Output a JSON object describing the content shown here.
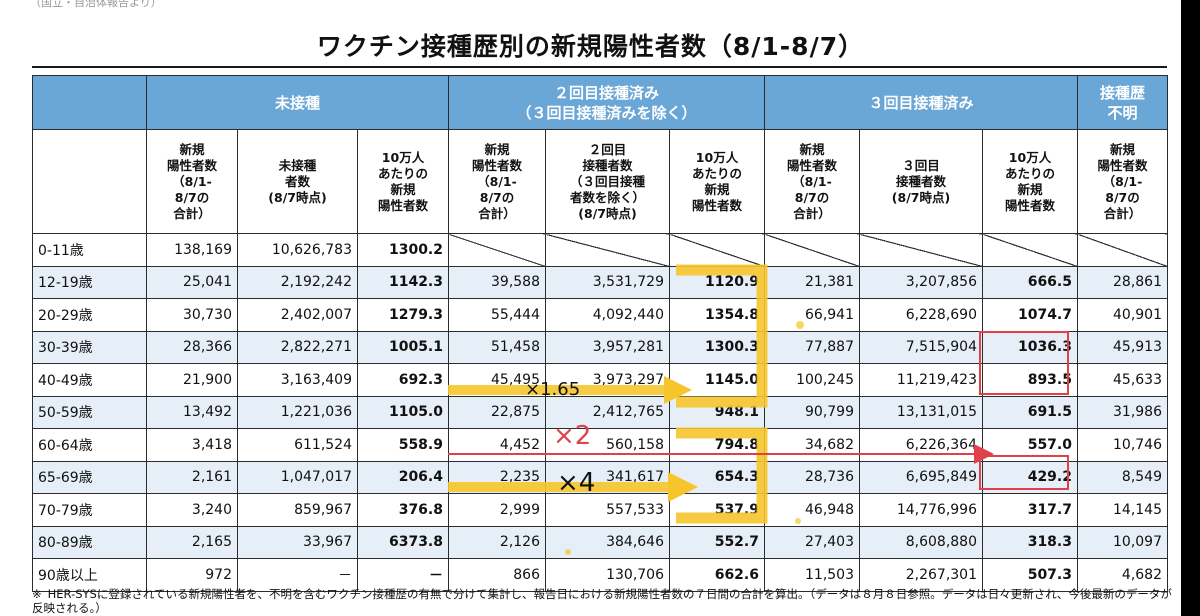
{
  "top_strip": "（国立・自治体報告より）",
  "title": "ワクチン接種歴別の新規陽性者数（8/1-8/7）",
  "groups": {
    "age": "",
    "unvaccinated": "未接種",
    "two_dose": "２回目接種済み\n（３回目接種済みを除く）",
    "three_dose": "３回目接種済み",
    "unknown": "接種歴\n不明"
  },
  "subheaders": {
    "c1": "新規\n陽性者数\n（8/1-\n8/7の\n合計）",
    "c2": "未接種\n者数\n(8/7時点)",
    "c3": "10万人\nあたりの\n新規\n陽性者数",
    "c4": "新規\n陽性者数\n（8/1-\n8/7の\n合計）",
    "c5": "２回目\n接種者数\n（３回目接種\n者数を除く）\n(8/7時点)",
    "c6": "10万人\nあたりの\n新規\n陽性者数",
    "c7": "新規\n陽性者数\n（8/1-\n8/7の\n合計）",
    "c8": "３回目\n接種者数\n(8/7時点)",
    "c9": "10万人\nあたりの\n新規\n陽性者数",
    "c10": "新規\n陽性者数\n（8/1-\n8/7の\n合計）"
  },
  "rows": [
    {
      "age": "0-11歳",
      "u_new": "138,169",
      "u_pop": "10,626,783",
      "u_rate": "1300.2",
      "d2_new": "",
      "d2_pop": "",
      "d2_rate": "",
      "d3_new": "",
      "d3_pop": "",
      "d3_rate": "",
      "unk": ""
    },
    {
      "age": "12-19歳",
      "u_new": "25,041",
      "u_pop": "2,192,242",
      "u_rate": "1142.3",
      "d2_new": "39,588",
      "d2_pop": "3,531,729",
      "d2_rate": "1120.9",
      "d3_new": "21,381",
      "d3_pop": "3,207,856",
      "d3_rate": "666.5",
      "unk": "28,861"
    },
    {
      "age": "20-29歳",
      "u_new": "30,730",
      "u_pop": "2,402,007",
      "u_rate": "1279.3",
      "d2_new": "55,444",
      "d2_pop": "4,092,440",
      "d2_rate": "1354.8",
      "d3_new": "66,941",
      "d3_pop": "6,228,690",
      "d3_rate": "1074.7",
      "unk": "40,901"
    },
    {
      "age": "30-39歳",
      "u_new": "28,366",
      "u_pop": "2,822,271",
      "u_rate": "1005.1",
      "d2_new": "51,458",
      "d2_pop": "3,957,281",
      "d2_rate": "1300.3",
      "d3_new": "77,887",
      "d3_pop": "7,515,904",
      "d3_rate": "1036.3",
      "unk": "45,913"
    },
    {
      "age": "40-49歳",
      "u_new": "21,900",
      "u_pop": "3,163,409",
      "u_rate": "692.3",
      "d2_new": "45,495",
      "d2_pop": "3,973,297",
      "d2_rate": "1145.0",
      "d3_new": "100,245",
      "d3_pop": "11,219,423",
      "d3_rate": "893.5",
      "unk": "45,633"
    },
    {
      "age": "50-59歳",
      "u_new": "13,492",
      "u_pop": "1,221,036",
      "u_rate": "1105.0",
      "d2_new": "22,875",
      "d2_pop": "2,412,765",
      "d2_rate": "948.1",
      "d3_new": "90,799",
      "d3_pop": "13,131,015",
      "d3_rate": "691.5",
      "unk": "31,986"
    },
    {
      "age": "60-64歳",
      "u_new": "3,418",
      "u_pop": "611,524",
      "u_rate": "558.9",
      "d2_new": "4,452",
      "d2_pop": "560,158",
      "d2_rate": "794.8",
      "d3_new": "34,682",
      "d3_pop": "6,226,364",
      "d3_rate": "557.0",
      "unk": "10,746"
    },
    {
      "age": "65-69歳",
      "u_new": "2,161",
      "u_pop": "1,047,017",
      "u_rate": "206.4",
      "d2_new": "2,235",
      "d2_pop": "341,617",
      "d2_rate": "654.3",
      "d3_new": "28,736",
      "d3_pop": "6,695,849",
      "d3_rate": "429.2",
      "unk": "8,549"
    },
    {
      "age": "70-79歳",
      "u_new": "3,240",
      "u_pop": "859,967",
      "u_rate": "376.8",
      "d2_new": "2,999",
      "d2_pop": "557,533",
      "d2_rate": "537.9",
      "d3_new": "46,948",
      "d3_pop": "14,776,996",
      "d3_rate": "317.7",
      "unk": "14,145"
    },
    {
      "age": "80-89歳",
      "u_new": "2,165",
      "u_pop": "33,967",
      "u_rate": "6373.8",
      "d2_new": "2,126",
      "d2_pop": "384,646",
      "d2_rate": "552.7",
      "d3_new": "27,403",
      "d3_pop": "8,608,880",
      "d3_rate": "318.3",
      "unk": "10,097"
    },
    {
      "age": "90歳以上",
      "u_new": "972",
      "u_pop": "－",
      "u_rate": "－",
      "d2_new": "866",
      "d2_pop": "130,706",
      "d2_rate": "662.6",
      "d3_new": "11,503",
      "d3_pop": "2,267,301",
      "d3_rate": "507.3",
      "unk": "4,682"
    }
  ],
  "footnote_mark": "※",
  "footnote": "HER-SYSに登録されている新規陽性者を、不明を含むワクチン接種歴の有無で分けて集計し、報告日における新規陽性者数の７日間の合計を算出。（データは８月８日参照。データは日々更新され、今後最新のデータが反映される。）",
  "annotations": {
    "x165": "×1.65",
    "x2": "×2",
    "x4": "×4"
  },
  "colors": {
    "header_blue": "#6aa6d6",
    "row_alt": "#e6eef8",
    "marker_yellow": "#f6c52c",
    "marker_red": "#e0404a"
  }
}
